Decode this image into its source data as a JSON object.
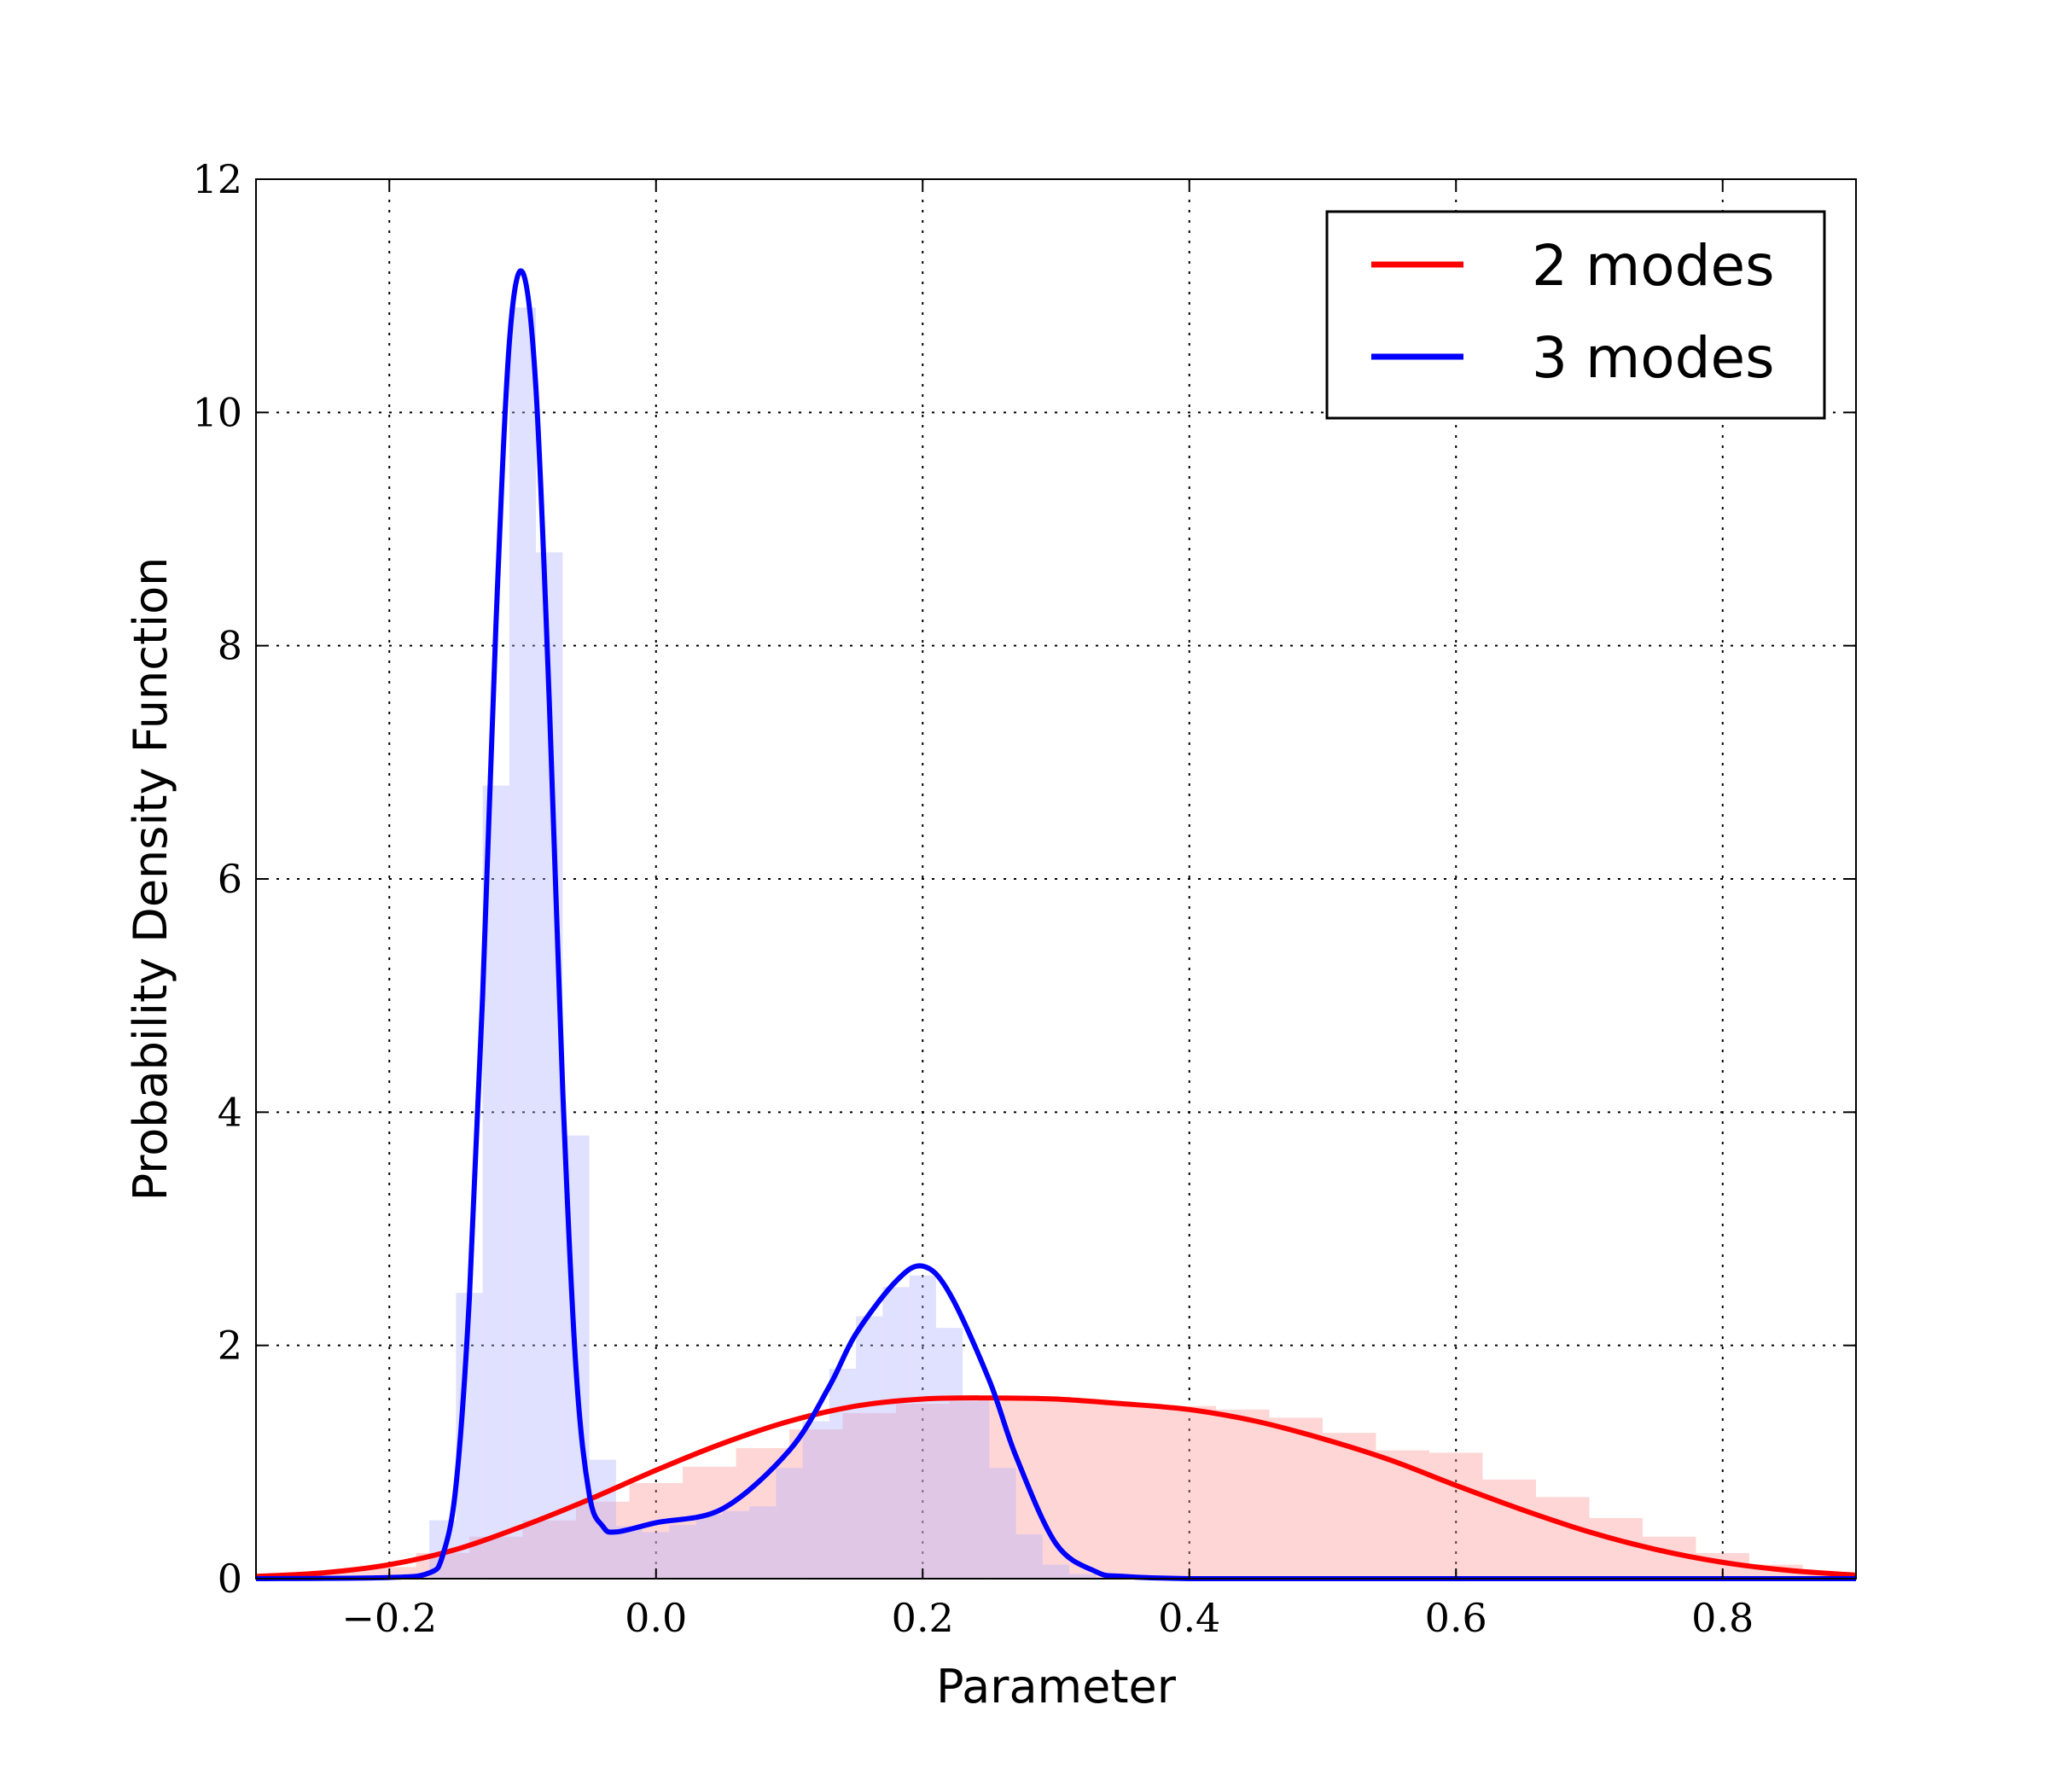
{
  "chart_data": {
    "type": "line",
    "title": "",
    "xlabel": "Parameter",
    "ylabel": "Probability Density Function",
    "xlim": [
      -0.3,
      0.9
    ],
    "ylim": [
      0,
      12
    ],
    "xticks": [
      -0.2,
      0.0,
      0.2,
      0.4,
      0.6,
      0.8
    ],
    "xtick_labels": [
      "−0.2",
      "0.0",
      "0.2",
      "0.4",
      "0.6",
      "0.8"
    ],
    "yticks": [
      0,
      2,
      4,
      6,
      8,
      10,
      12
    ],
    "ytick_labels": [
      "0",
      "2",
      "4",
      "6",
      "8",
      "10",
      "12"
    ],
    "grid": true,
    "legend_position": "top-right",
    "series": [
      {
        "name": "2 modes",
        "color": "#ff0000",
        "hist_color": "#ff9999",
        "x": [
          -0.3,
          -0.25,
          -0.2,
          -0.15,
          -0.1,
          -0.05,
          0.0,
          0.05,
          0.1,
          0.15,
          0.2,
          0.25,
          0.3,
          0.35,
          0.4,
          0.45,
          0.5,
          0.55,
          0.6,
          0.65,
          0.7,
          0.75,
          0.8,
          0.85,
          0.9
        ],
        "y": [
          0.02,
          0.05,
          0.12,
          0.25,
          0.45,
          0.68,
          0.93,
          1.16,
          1.35,
          1.48,
          1.54,
          1.55,
          1.54,
          1.5,
          1.45,
          1.35,
          1.2,
          1.02,
          0.8,
          0.59,
          0.4,
          0.25,
          0.14,
          0.07,
          0.03
        ],
        "hist_bins": [
          -0.3,
          -0.26,
          -0.22,
          -0.18,
          -0.14,
          -0.1,
          -0.06,
          -0.02,
          0.02,
          0.06,
          0.1,
          0.14,
          0.18,
          0.22,
          0.26,
          0.3,
          0.34,
          0.38,
          0.42,
          0.46,
          0.5,
          0.54,
          0.58,
          0.62,
          0.66,
          0.7,
          0.74,
          0.78,
          0.82,
          0.86,
          0.9
        ],
        "hist_values": [
          0.03,
          0.06,
          0.1,
          0.22,
          0.36,
          0.5,
          0.66,
          0.82,
          0.96,
          1.12,
          1.28,
          1.42,
          1.5,
          1.52,
          1.55,
          1.53,
          1.5,
          1.48,
          1.45,
          1.38,
          1.25,
          1.1,
          1.08,
          0.85,
          0.7,
          0.52,
          0.36,
          0.22,
          0.12,
          0.05
        ]
      },
      {
        "name": "3 modes",
        "color": "#0000ff",
        "hist_color": "#b2b2ff",
        "x": [
          -0.3,
          -0.2,
          -0.17,
          -0.16,
          -0.15,
          -0.14,
          -0.13,
          -0.12,
          -0.11,
          -0.1,
          -0.09,
          -0.08,
          -0.07,
          -0.06,
          -0.05,
          -0.04,
          -0.03,
          0.0,
          0.05,
          0.1,
          0.13,
          0.15,
          0.18,
          0.2,
          0.22,
          0.25,
          0.27,
          0.3,
          0.33,
          0.35,
          0.4,
          0.5,
          0.9
        ],
        "y": [
          0.0,
          0.01,
          0.05,
          0.2,
          0.8,
          2.4,
          5.0,
          8.2,
          10.6,
          11.2,
          10.2,
          7.5,
          4.2,
          1.8,
          0.72,
          0.45,
          0.4,
          0.48,
          0.6,
          1.1,
          1.65,
          2.1,
          2.55,
          2.68,
          2.45,
          1.7,
          1.05,
          0.3,
          0.06,
          0.02,
          0.0,
          0.0,
          0.0
        ],
        "hist_bins": [
          -0.3,
          -0.17,
          -0.15,
          -0.13,
          -0.11,
          -0.09,
          -0.07,
          -0.05,
          -0.03,
          -0.01,
          0.01,
          0.03,
          0.05,
          0.07,
          0.09,
          0.11,
          0.13,
          0.15,
          0.17,
          0.19,
          0.21,
          0.23,
          0.25,
          0.27,
          0.29,
          0.31,
          0.33,
          0.35,
          0.9
        ],
        "hist_values": [
          0.0,
          0.5,
          2.45,
          6.8,
          10.9,
          8.8,
          3.8,
          1.02,
          0.45,
          0.4,
          0.46,
          0.55,
          0.58,
          0.62,
          0.95,
          1.35,
          1.8,
          2.25,
          2.5,
          2.6,
          2.15,
          1.55,
          0.95,
          0.38,
          0.12,
          0.04,
          0.01,
          0.0
        ]
      }
    ]
  }
}
